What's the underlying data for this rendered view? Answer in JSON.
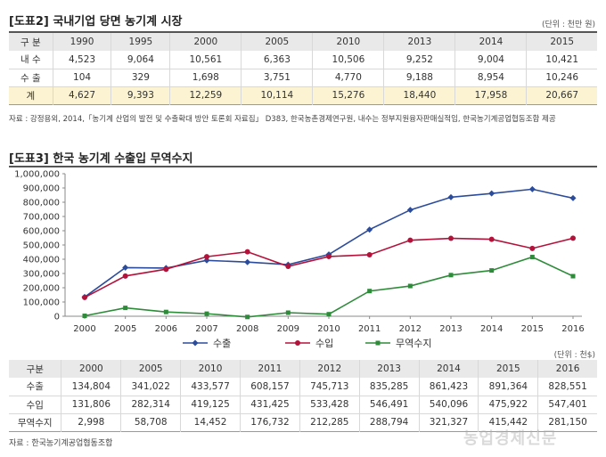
{
  "table2": {
    "title": "[도표2] 국내기업 당면 농기계 시장",
    "unit": "(단위 : 천만 원)",
    "header_label": "구 분",
    "years": [
      "1990",
      "1995",
      "2000",
      "2005",
      "2010",
      "2013",
      "2014",
      "2015"
    ],
    "rows": [
      {
        "label": "내 수",
        "values": [
          "4,523",
          "9,064",
          "10,561",
          "6,363",
          "10,506",
          "9,252",
          "9,004",
          "10,421"
        ]
      },
      {
        "label": "수 출",
        "values": [
          "104",
          "329",
          "1,698",
          "3,751",
          "4,770",
          "9,188",
          "8,954",
          "10,246"
        ]
      },
      {
        "label": "계",
        "values": [
          "4,627",
          "9,393",
          "12,259",
          "10,114",
          "15,276",
          "18,440",
          "17,958",
          "20,667"
        ]
      }
    ],
    "source": "자료 : 강정용외, 2014,「농기계 산업의 발전 및 수출확대 방안 토론회 자료집」 D383, 한국농촌경제연구원, 내수는 정부지원융자판매실적임, 한국농기계공업협동조합 제공"
  },
  "table3": {
    "title": "[도표3] 한국 농기계 수출입 무역수지",
    "unit": "(단위 : 천$)",
    "header_label": "구분",
    "years": [
      "2000",
      "2005",
      "2010",
      "2011",
      "2012",
      "2013",
      "2014",
      "2015",
      "2016"
    ],
    "rows": [
      {
        "label": "수출",
        "values": [
          "134,804",
          "341,022",
          "433,577",
          "608,157",
          "745,713",
          "835,285",
          "861,423",
          "891,364",
          "828,551"
        ]
      },
      {
        "label": "수입",
        "values": [
          "131,806",
          "282,314",
          "419,125",
          "431,425",
          "533,428",
          "546,491",
          "540,096",
          "475,922",
          "547,401"
        ]
      },
      {
        "label": "무역수지",
        "values": [
          "2,998",
          "58,708",
          "14,452",
          "176,732",
          "212,285",
          "288,794",
          "321,327",
          "415,442",
          "281,150"
        ]
      }
    ],
    "source": "자료 : 한국농기계공업협동조합"
  },
  "chart_data": {
    "type": "line",
    "title": "",
    "xlabel": "",
    "ylabel": "",
    "x": [
      "2000",
      "2005",
      "2006",
      "2007",
      "2008",
      "2009",
      "2010",
      "2011",
      "2012",
      "2013",
      "2014",
      "2015",
      "2016"
    ],
    "y_ticks": [
      "0",
      "100,000",
      "200,000",
      "300,000",
      "400,000",
      "500,000",
      "600,000",
      "700,000",
      "800,000",
      "900,000",
      "1,000,000"
    ],
    "ylim": [
      0,
      1000000
    ],
    "grid": false,
    "legend_position": "bottom",
    "series": [
      {
        "name": "수출",
        "color": "#2b4b9b",
        "marker": "diamond",
        "values": [
          134804,
          341022,
          338000,
          392000,
          380000,
          362000,
          433577,
          608157,
          745713,
          835285,
          861423,
          891364,
          828551
        ]
      },
      {
        "name": "수입",
        "color": "#b3123b",
        "marker": "circle",
        "values": [
          131806,
          282314,
          330000,
          418000,
          452000,
          350000,
          419125,
          431425,
          533428,
          546491,
          540096,
          475922,
          547401
        ]
      },
      {
        "name": "무역수지",
        "color": "#2e8b3a",
        "marker": "square",
        "values": [
          2998,
          58708,
          30000,
          18000,
          -5000,
          25000,
          14452,
          176732,
          212285,
          288794,
          321327,
          415442,
          281150
        ]
      }
    ]
  },
  "watermark": "농업경제신문"
}
